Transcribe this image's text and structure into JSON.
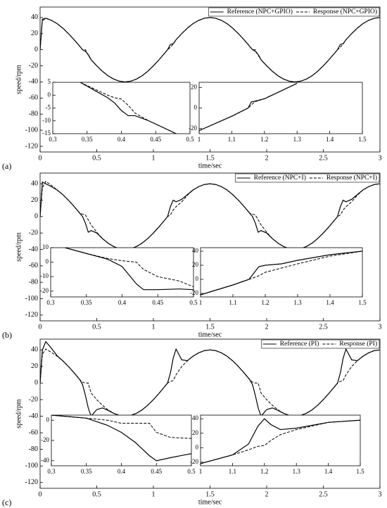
{
  "chart_data": [
    {
      "type": "line",
      "panel_label": "(a)",
      "xlabel": "time/sec",
      "ylabel": "speed/rpm",
      "legend": "upper right",
      "xlim": [
        0,
        3
      ],
      "ylim": [
        -127,
        53
      ],
      "xticks": [
        0,
        0.5,
        1,
        1.5,
        2,
        2.5,
        3
      ],
      "yticks": [
        40,
        20,
        0,
        -20,
        -40,
        -60,
        -80,
        -100,
        -120
      ],
      "x": [
        0,
        0.02,
        0.05,
        0.1,
        0.15,
        0.2,
        0.25,
        0.3,
        0.35,
        0.375,
        0.4,
        0.425,
        0.45,
        0.5,
        0.55,
        0.6,
        0.65,
        0.7,
        0.75,
        0.8,
        0.85,
        0.9,
        0.95,
        1,
        1.05,
        1.1,
        1.125,
        1.15,
        1.175,
        1.2,
        1.25,
        1.3,
        1.35,
        1.4,
        1.45,
        1.5,
        1.55,
        1.6,
        1.65,
        1.7,
        1.75,
        1.8,
        1.85,
        1.875,
        1.9,
        1.925,
        1.95,
        2,
        2.05,
        2.1,
        2.15,
        2.2,
        2.25,
        2.3,
        2.35,
        2.4,
        2.45,
        2.5,
        2.55,
        2.6,
        2.625,
        2.65,
        2.675,
        2.7,
        2.75,
        2.8,
        2.85,
        2.9,
        2.95,
        3
      ],
      "series": [
        {
          "name": "Reference (NPC+GPIO)",
          "color": "#000000",
          "style": "solid",
          "values": [
            0,
            38,
            39.1,
            36.5,
            32.4,
            26.8,
            20,
            12.4,
            4.2,
            0,
            -2,
            -6,
            -12.4,
            -20,
            -26.8,
            -32.4,
            -36.5,
            -39.1,
            -40,
            -39.1,
            -36.5,
            -32.4,
            -26.8,
            -20,
            -12.4,
            -4.2,
            0,
            6.5,
            7.5,
            12.4,
            20,
            26.8,
            32.4,
            36.5,
            39.1,
            40,
            39.1,
            36.5,
            32.4,
            26.8,
            20,
            12.4,
            4.2,
            0,
            -2,
            -6,
            -12.4,
            -20,
            -26.8,
            -32.4,
            -36.5,
            -39.1,
            -40,
            -39.1,
            -36.5,
            -32.4,
            -26.8,
            -20,
            -12.4,
            -4.2,
            0,
            6.5,
            7.5,
            12.4,
            20,
            26.8,
            32.4,
            36.5,
            39.1,
            40
          ]
        },
        {
          "name": "Response (NPC+GPIO)",
          "color": "#000000",
          "style": "dashed",
          "values": [
            0,
            36,
            39.1,
            36.5,
            32.4,
            26.8,
            20,
            12.4,
            4.2,
            0,
            0,
            -7,
            -12.4,
            -20,
            -26.8,
            -32.4,
            -36.5,
            -39.1,
            -40,
            -39.1,
            -36.5,
            -32.4,
            -26.8,
            -20,
            -12.4,
            -4.2,
            0,
            3,
            7,
            12.4,
            20,
            26.8,
            32.4,
            36.5,
            39.1,
            40,
            39.1,
            36.5,
            32.4,
            26.8,
            20,
            12.4,
            4.2,
            0,
            0,
            -7,
            -12.4,
            -20,
            -26.8,
            -32.4,
            -36.5,
            -39.1,
            -40,
            -39.1,
            -36.5,
            -32.4,
            -26.8,
            -20,
            -12.4,
            -4.2,
            0,
            3,
            7,
            12.4,
            20,
            26.8,
            32.4,
            36.5,
            39.1,
            40
          ]
        }
      ]
    },
    {
      "type": "line",
      "xlim": [
        0.3,
        0.5
      ],
      "ylim": [
        -15,
        5
      ],
      "xticks": [
        0.3,
        0.35,
        0.4,
        0.45,
        0.5
      ],
      "yticks": [
        5,
        0,
        -5,
        -10,
        -15
      ],
      "x": [
        0.34,
        0.36,
        0.38,
        0.39,
        0.4,
        0.41,
        0.42,
        0.44,
        0.46,
        0.48
      ],
      "series": [
        {
          "color": "#000000",
          "style": "solid",
          "values": [
            5,
            2,
            -1,
            -3,
            -6,
            -8,
            -8,
            -10,
            -12.5,
            -15
          ]
        },
        {
          "color": "#000000",
          "style": "dashed",
          "values": [
            5,
            2.5,
            0,
            -1,
            -1.5,
            -4,
            -7,
            -10,
            -12.5,
            -15
          ]
        }
      ]
    },
    {
      "type": "line",
      "xlim": [
        1,
        1.5
      ],
      "ylim": [
        -25,
        25
      ],
      "xticks": [
        1,
        1.1,
        1.2,
        1.3,
        1.4,
        1.5
      ],
      "yticks": [
        20,
        0,
        -20
      ],
      "x": [
        1,
        1.1,
        1.15,
        1.16,
        1.17,
        1.2,
        1.3
      ],
      "series": [
        {
          "color": "#000000",
          "style": "solid",
          "values": [
            -22,
            -8,
            0,
            6,
            6.5,
            9,
            24
          ]
        },
        {
          "color": "#000000",
          "style": "dashed",
          "values": [
            -22,
            -8,
            0,
            3,
            6,
            9,
            24
          ]
        }
      ]
    },
    {
      "type": "line",
      "panel_label": "(b)",
      "xlabel": "time/sec",
      "ylabel": "speed/rpm",
      "legend": "upper right",
      "xlim": [
        0,
        3
      ],
      "ylim": [
        -127,
        53
      ],
      "xticks": [
        0,
        0.5,
        1,
        1.5,
        2,
        2.5,
        3
      ],
      "yticks": [
        40,
        20,
        0,
        -20,
        -40,
        -60,
        -80,
        -100,
        -120
      ],
      "x": [
        0,
        0.02,
        0.05,
        0.1,
        0.15,
        0.2,
        0.25,
        0.3,
        0.35,
        0.375,
        0.4,
        0.425,
        0.45,
        0.5,
        0.55,
        0.6,
        0.65,
        0.7,
        0.75,
        0.8,
        0.85,
        0.9,
        0.95,
        1,
        1.05,
        1.1,
        1.125,
        1.15,
        1.175,
        1.2,
        1.25,
        1.3,
        1.35,
        1.4,
        1.45,
        1.5,
        1.55,
        1.6,
        1.65,
        1.7,
        1.75,
        1.8,
        1.85,
        1.875,
        1.9,
        1.925,
        1.95,
        2,
        2.05,
        2.1,
        2.15,
        2.2,
        2.25,
        2.3,
        2.35,
        2.4,
        2.45,
        2.5,
        2.55,
        2.6,
        2.625,
        2.65,
        2.675,
        2.7,
        2.75,
        2.8,
        2.85,
        2.9,
        2.95,
        3
      ],
      "series": [
        {
          "name": "Reference (NPC+I)",
          "color": "#000000",
          "style": "solid",
          "values": [
            0,
            42,
            40,
            36.5,
            32.4,
            26.8,
            20,
            12.4,
            4.2,
            0,
            -8,
            -19,
            -17,
            -20,
            -26.8,
            -32.4,
            -36.5,
            -39.1,
            -40,
            -39.1,
            -36.5,
            -32.4,
            -26.8,
            -20,
            -12.4,
            -4.2,
            0,
            12,
            20,
            18,
            21,
            26.8,
            32.4,
            36.5,
            39.1,
            40,
            39.1,
            36.5,
            32.4,
            26.8,
            20,
            12.4,
            4.2,
            0,
            -8,
            -19,
            -17,
            -20,
            -26.8,
            -32.4,
            -36.5,
            -39.1,
            -40,
            -39.1,
            -36.5,
            -32.4,
            -26.8,
            -20,
            -12.4,
            -4.2,
            0,
            12,
            20,
            18,
            21,
            26.8,
            32.4,
            36.5,
            39.1,
            40
          ]
        },
        {
          "name": "Response (NPC+I)",
          "color": "#000000",
          "style": "dashed",
          "values": [
            0,
            35,
            43,
            38,
            32.4,
            26.8,
            20,
            12.4,
            4.2,
            3,
            2,
            -4,
            -10,
            -19,
            -26.8,
            -32.4,
            -36.5,
            -39.1,
            -40,
            -39.1,
            -36.5,
            -32.4,
            -26.8,
            -20,
            -12.4,
            -4.2,
            0,
            2,
            8,
            12,
            18,
            26,
            32.4,
            36.5,
            39.1,
            40,
            39.1,
            36.5,
            32.4,
            26.8,
            20,
            12.4,
            4.2,
            3,
            2,
            -4,
            -10,
            -19,
            -26.8,
            -32.4,
            -36.5,
            -39.1,
            -40,
            -39.1,
            -36.5,
            -32.4,
            -26.8,
            -20,
            -12.4,
            -4.2,
            0,
            2,
            8,
            12,
            18,
            26,
            32.4,
            36.5,
            39.1,
            40
          ]
        }
      ]
    },
    {
      "type": "line",
      "xlim": [
        0.3,
        0.5
      ],
      "ylim": [
        -24,
        10
      ],
      "xticks": [
        0.3,
        0.35,
        0.4,
        0.45,
        0.5
      ],
      "yticks": [
        10,
        0,
        -10,
        -20
      ],
      "x": [
        0.32,
        0.35,
        0.38,
        0.4,
        0.42,
        0.43,
        0.45,
        0.48,
        0.5
      ],
      "series": [
        {
          "color": "#000000",
          "style": "solid",
          "values": [
            10,
            6,
            2,
            -3,
            -15,
            -19,
            -19,
            -18.5,
            -19
          ]
        },
        {
          "color": "#000000",
          "style": "dashed",
          "values": [
            10,
            6,
            2.5,
            1,
            0,
            -5,
            -10,
            -13,
            -17
          ]
        }
      ]
    },
    {
      "type": "line",
      "xlim": [
        1,
        1.5
      ],
      "ylim": [
        -25,
        45
      ],
      "xticks": [
        1,
        1.1,
        1.2,
        1.3,
        1.4,
        1.5
      ],
      "yticks": [
        40,
        20,
        0,
        -20
      ],
      "x": [
        1,
        1.1,
        1.15,
        1.18,
        1.2,
        1.25,
        1.3,
        1.4,
        1.5
      ],
      "series": [
        {
          "color": "#000000",
          "style": "solid",
          "values": [
            -22,
            -8,
            0,
            18,
            20,
            22,
            27,
            35,
            40
          ]
        },
        {
          "color": "#000000",
          "style": "dashed",
          "values": [
            -22,
            -8,
            0,
            5,
            10,
            16,
            22,
            33,
            40
          ]
        }
      ]
    },
    {
      "type": "line",
      "panel_label": "(c)",
      "xlabel": "time/sec",
      "ylabel": "speed/rpm",
      "legend": "upper right",
      "xlim": [
        0,
        3
      ],
      "ylim": [
        -127,
        53
      ],
      "xticks": [
        0,
        0.5,
        1,
        1.5,
        2,
        2.5,
        3
      ],
      "yticks": [
        40,
        20,
        0,
        -20,
        -40,
        -60,
        -80,
        -100,
        -120
      ],
      "x": [
        0,
        0.02,
        0.05,
        0.1,
        0.15,
        0.2,
        0.25,
        0.3,
        0.35,
        0.375,
        0.4,
        0.425,
        0.45,
        0.5,
        0.55,
        0.6,
        0.65,
        0.7,
        0.75,
        0.8,
        0.85,
        0.9,
        0.95,
        1,
        1.05,
        1.1,
        1.125,
        1.15,
        1.175,
        1.2,
        1.25,
        1.3,
        1.35,
        1.4,
        1.45,
        1.5,
        1.55,
        1.6,
        1.65,
        1.7,
        1.75,
        1.8,
        1.85,
        1.875,
        1.9,
        1.925,
        1.95,
        2,
        2.05,
        2.1,
        2.15,
        2.2,
        2.25,
        2.3,
        2.35,
        2.4,
        2.45,
        2.5,
        2.55,
        2.6,
        2.625,
        2.65,
        2.675,
        2.7,
        2.75,
        2.8,
        2.85,
        2.9,
        2.95,
        3
      ],
      "series": [
        {
          "name": "Reference (PI)",
          "color": "#000000",
          "style": "solid",
          "values": [
            0,
            40,
            50,
            42,
            33,
            26.8,
            20,
            12.4,
            4.2,
            -2,
            -15,
            -30,
            -40,
            -32,
            -30,
            -33,
            -36.5,
            -39.1,
            -40,
            -39.1,
            -36.5,
            -32.4,
            -26.8,
            -20,
            -12.4,
            -4.2,
            0,
            12,
            30,
            41,
            28,
            27,
            32.4,
            36.5,
            39.1,
            40,
            39.1,
            36.5,
            32.4,
            26.8,
            20,
            12.4,
            4.2,
            -2,
            -15,
            -30,
            -40,
            -32,
            -30,
            -33,
            -36.5,
            -39.1,
            -40,
            -39.1,
            -36.5,
            -32.4,
            -26.8,
            -20,
            -12.4,
            -4.2,
            0,
            12,
            30,
            41,
            28,
            27,
            32.4,
            36.5,
            39.1,
            40
          ]
        },
        {
          "name": "Response (PI)",
          "color": "#000000",
          "style": "dashed",
          "values": [
            0,
            35,
            41,
            37,
            32.4,
            26.8,
            20,
            12.4,
            4.2,
            1,
            0,
            0,
            -12,
            -20,
            -26.8,
            -32.4,
            -36.5,
            -39.1,
            -40,
            -39.1,
            -36.5,
            -32.4,
            -26.8,
            -20,
            -12.4,
            -4.2,
            0,
            2,
            3,
            10,
            20,
            26.8,
            32.4,
            36.5,
            39.1,
            40,
            39.1,
            36.5,
            32.4,
            26.8,
            20,
            12.4,
            4.2,
            1,
            0,
            0,
            -12,
            -20,
            -26.8,
            -32.4,
            -36.5,
            -39.1,
            -40,
            -39.1,
            -36.5,
            -32.4,
            -26.8,
            -20,
            -12.4,
            -4.2,
            0,
            2,
            3,
            10,
            20,
            26.8,
            32.4,
            36.5,
            39.1,
            40
          ]
        }
      ]
    },
    {
      "type": "line",
      "xlim": [
        0.3,
        0.5
      ],
      "ylim": [
        -45,
        5
      ],
      "xticks": [
        0.3,
        0.35,
        0.4,
        0.45,
        0.5
      ],
      "yticks": [
        0,
        -20,
        -40
      ],
      "x": [
        0.3,
        0.35,
        0.38,
        0.4,
        0.42,
        0.44,
        0.45,
        0.47,
        0.5
      ],
      "series": [
        {
          "color": "#000000",
          "style": "solid",
          "values": [
            5,
            2,
            -5,
            -12,
            -22,
            -35,
            -40,
            -37,
            -33
          ]
        },
        {
          "color": "#000000",
          "style": "dashed",
          "values": [
            5,
            2,
            0,
            -3,
            -3,
            -3,
            -12,
            -17,
            -18
          ]
        }
      ]
    },
    {
      "type": "line",
      "xlim": [
        1,
        1.5
      ],
      "ylim": [
        -25,
        45
      ],
      "xticks": [
        1,
        1.1,
        1.2,
        1.3,
        1.4,
        1.5
      ],
      "yticks": [
        40,
        20,
        0,
        -20
      ],
      "x": [
        1,
        1.1,
        1.15,
        1.18,
        1.2,
        1.22,
        1.25,
        1.3,
        1.4,
        1.5
      ],
      "series": [
        {
          "color": "#000000",
          "style": "solid",
          "values": [
            -22,
            -10,
            5,
            30,
            40,
            32,
            25,
            27,
            35,
            38
          ]
        },
        {
          "color": "#000000",
          "style": "dashed",
          "values": [
            -22,
            -10,
            -3,
            2,
            3,
            10,
            18,
            25,
            35,
            38
          ]
        }
      ]
    }
  ]
}
